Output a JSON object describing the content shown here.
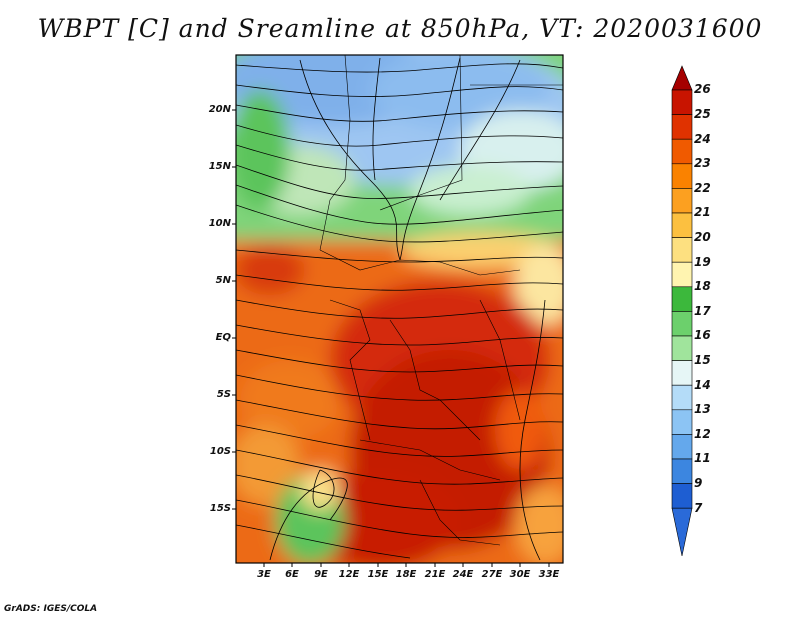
{
  "title": "WBPT [C] and Sreamline at 850hPa, VT: 2020031600",
  "credit": "GrADS: IGES/COLA",
  "y_axis": [
    "20N",
    "15N",
    "10N",
    "5N",
    "EQ",
    "5S",
    "10S",
    "15S"
  ],
  "x_axis": [
    "3E",
    "6E",
    "9E",
    "12E",
    "15E",
    "18E",
    "21E",
    "24E",
    "27E",
    "30E",
    "33E"
  ],
  "colorbar": {
    "labels": [
      "26",
      "25",
      "24",
      "23",
      "22",
      "21",
      "20",
      "19",
      "18",
      "17",
      "16",
      "15",
      "14",
      "13",
      "12",
      "11",
      "9",
      "7"
    ],
    "colors": [
      "#a50000",
      "#c81400",
      "#e03200",
      "#f05a00",
      "#fa8200",
      "#fca020",
      "#fcc040",
      "#fde080",
      "#fff4b0",
      "#3cb83c",
      "#6cd06c",
      "#a0e49c",
      "#e6f6f6",
      "#b4dcf8",
      "#8cc4f4",
      "#64a8ec",
      "#3c86e0",
      "#1e5ed2",
      "#2a6ad8"
    ]
  },
  "colors": {
    "hot": "#c81e05",
    "warm": "#e85a0e",
    "orange": "#f7a23c",
    "green": "#6cd06c",
    "blue": "#7fb0ea",
    "streamline": "#000000"
  }
}
